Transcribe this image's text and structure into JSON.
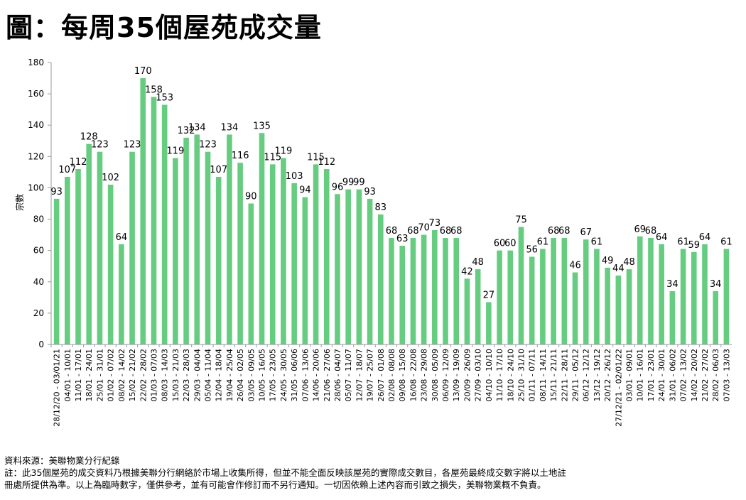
{
  "page_title": "圖：每周35個屋苑成交量",
  "footer": {
    "source": "資料來源：美聯物業分行紀錄",
    "note_line1": "註：此35個屋苑的成交資料乃根據美聯分行網絡於市場上收集所得，但並不能全面反映該屋苑的實際成交數目，各屋苑最終成交數字將以土地註",
    "note_line2": "冊處所提供為準。以上為臨時數字，僅供參考，並有可能會作修訂而不另行通知。一切因依賴上述內容而引致之損失，美聯物業概不負責。"
  },
  "chart_data": {
    "type": "bar",
    "title": "",
    "xlabel": "",
    "ylabel": "宗數",
    "ylim": [
      0,
      180
    ],
    "yticks": [
      0,
      20,
      40,
      60,
      80,
      100,
      120,
      140,
      160,
      180
    ],
    "bar_color": "#66cc80",
    "grid": false,
    "legend": "none",
    "categories": [
      "28/12/20 - 03/01/21",
      "04/01 - 10/01",
      "11/01 - 17/01",
      "18/01 - 24/01",
      "25/01 - 31/01",
      "01/02 - 07/02",
      "08/02 - 14/02",
      "15/02 - 21/02",
      "22/02 - 28/02",
      "01/03 - 07/03",
      "08/03 - 14/03",
      "15/03 - 21/03",
      "22/03 - 28/03",
      "29/03 - 04/04",
      "05/04 - 11/04",
      "12/04 - 18/04",
      "19/04 - 25/04",
      "26/04 - 02/05",
      "03/05 - 09/05",
      "10/05 - 16/05",
      "17/05 - 23/05",
      "24/05 - 30/05",
      "31/05 - 06/06",
      "07/06 - 13/06",
      "14/06 - 20/06",
      "21/06 - 27/06",
      "28/06 - 04/07",
      "05/07 - 11/07",
      "12/07 - 18/07",
      "19/07 - 25/07",
      "26/07 - 01/08",
      "02/08 - 08/08",
      "09/08 - 15/08",
      "16/08 - 22/08",
      "23/08 - 29/08",
      "30/08 - 05/09",
      "06/09 - 12/09",
      "13/09 - 19/09",
      "20/09 - 26/09",
      "27/09 - 03/10",
      "04/10 - 10/10",
      "11/10 - 17/10",
      "18/10 - 24/10",
      "25/10 - 31/10",
      "01/11 - 07/11",
      "08/11 - 14/11",
      "15/11 - 21/11",
      "22/11 - 28/11",
      "29/11 - 05/12",
      "06/12 - 12/12",
      "13/12 - 19/12",
      "20/12 - 26/12",
      "27/12/21 - 02/01/22",
      "03/01 - 09/01",
      "10/01 - 16/01",
      "17/01 - 23/01",
      "24/01 - 30/01",
      "31/01 - 06/02",
      "07/02 - 13/02",
      "14/02 - 20/02",
      "21/02 - 27/02",
      "28/02 - 06/03",
      "07/03 - 13/03"
    ],
    "values": [
      93,
      107,
      112,
      128,
      123,
      102,
      64,
      123,
      170,
      158,
      153,
      119,
      132,
      134,
      123,
      107,
      134,
      116,
      90,
      135,
      115,
      119,
      103,
      94,
      115,
      112,
      96,
      99,
      99,
      93,
      83,
      68,
      63,
      68,
      70,
      73,
      68,
      68,
      42,
      48,
      27,
      60,
      60,
      75,
      56,
      61,
      68,
      68,
      46,
      67,
      61,
      49,
      44,
      48,
      69,
      68,
      64,
      34,
      61,
      59,
      64,
      34,
      61
    ]
  }
}
